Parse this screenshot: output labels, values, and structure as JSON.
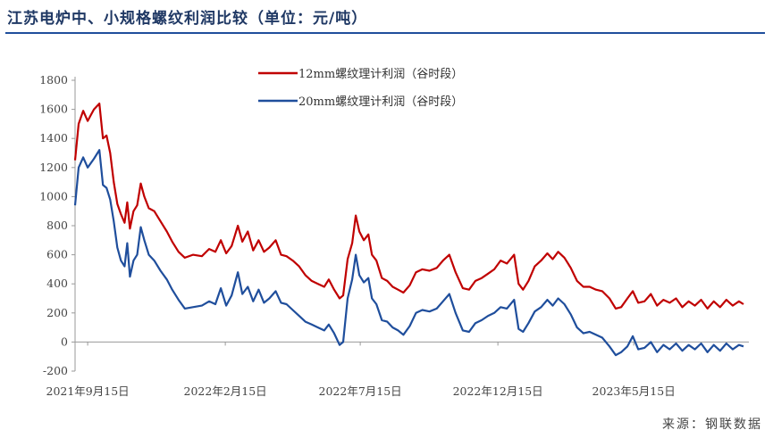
{
  "title": "江苏电炉中、小规格螺纹利润比较（单位：元/吨）",
  "source": "来源：钢联数据",
  "chart_data": {
    "type": "line",
    "title": "江苏电炉中、小规格螺纹利润比较（单位：元/吨）",
    "xlabel": "",
    "ylabel": "",
    "ylim": [
      -200,
      1800
    ],
    "yticks": [
      -200,
      0,
      200,
      400,
      600,
      800,
      1000,
      1200,
      1400,
      1600,
      1800
    ],
    "xlim": [
      "2021-09-01",
      "2023-09-20"
    ],
    "xticks": [
      {
        "date": "2021-09-15",
        "label": "2021年9月15日"
      },
      {
        "date": "2022-02-15",
        "label": "2022年2月15日"
      },
      {
        "date": "2022-07-15",
        "label": "2022年7月15日"
      },
      {
        "date": "2022-12-15",
        "label": "2022年12月15日"
      },
      {
        "date": "2023-05-15",
        "label": "2023年5月15日"
      }
    ],
    "grid": false,
    "legend_position": "top-center",
    "series": [
      {
        "name": "12mm螺纹理计利润（谷时段）",
        "color": "#c00000",
        "points": [
          [
            "2021-09-01",
            1250
          ],
          [
            "2021-09-05",
            1500
          ],
          [
            "2021-09-10",
            1590
          ],
          [
            "2021-09-15",
            1520
          ],
          [
            "2021-09-22",
            1600
          ],
          [
            "2021-09-28",
            1640
          ],
          [
            "2021-10-02",
            1400
          ],
          [
            "2021-10-06",
            1420
          ],
          [
            "2021-10-10",
            1300
          ],
          [
            "2021-10-14",
            1100
          ],
          [
            "2021-10-18",
            950
          ],
          [
            "2021-10-22",
            880
          ],
          [
            "2021-10-26",
            820
          ],
          [
            "2021-10-29",
            960
          ],
          [
            "2021-11-01",
            780
          ],
          [
            "2021-11-05",
            900
          ],
          [
            "2021-11-09",
            940
          ],
          [
            "2021-11-13",
            1090
          ],
          [
            "2021-11-17",
            1000
          ],
          [
            "2021-11-22",
            920
          ],
          [
            "2021-11-28",
            900
          ],
          [
            "2021-12-05",
            830
          ],
          [
            "2021-12-12",
            760
          ],
          [
            "2021-12-18",
            690
          ],
          [
            "2021-12-25",
            620
          ],
          [
            "2022-01-01",
            580
          ],
          [
            "2022-01-10",
            600
          ],
          [
            "2022-01-20",
            590
          ],
          [
            "2022-01-28",
            640
          ],
          [
            "2022-02-04",
            620
          ],
          [
            "2022-02-10",
            700
          ],
          [
            "2022-02-16",
            610
          ],
          [
            "2022-02-22",
            660
          ],
          [
            "2022-03-01",
            800
          ],
          [
            "2022-03-06",
            690
          ],
          [
            "2022-03-12",
            760
          ],
          [
            "2022-03-18",
            630
          ],
          [
            "2022-03-24",
            700
          ],
          [
            "2022-03-30",
            620
          ],
          [
            "2022-04-05",
            650
          ],
          [
            "2022-04-12",
            700
          ],
          [
            "2022-04-18",
            600
          ],
          [
            "2022-04-24",
            590
          ],
          [
            "2022-05-01",
            560
          ],
          [
            "2022-05-08",
            520
          ],
          [
            "2022-05-15",
            460
          ],
          [
            "2022-05-22",
            420
          ],
          [
            "2022-05-29",
            400
          ],
          [
            "2022-06-05",
            380
          ],
          [
            "2022-06-10",
            430
          ],
          [
            "2022-06-16",
            360
          ],
          [
            "2022-06-22",
            300
          ],
          [
            "2022-06-26",
            320
          ],
          [
            "2022-07-01",
            570
          ],
          [
            "2022-07-06",
            680
          ],
          [
            "2022-07-10",
            870
          ],
          [
            "2022-07-14",
            760
          ],
          [
            "2022-07-19",
            700
          ],
          [
            "2022-07-24",
            740
          ],
          [
            "2022-07-28",
            600
          ],
          [
            "2022-08-02",
            560
          ],
          [
            "2022-08-08",
            440
          ],
          [
            "2022-08-14",
            420
          ],
          [
            "2022-08-20",
            380
          ],
          [
            "2022-08-26",
            360
          ],
          [
            "2022-09-01",
            340
          ],
          [
            "2022-09-08",
            390
          ],
          [
            "2022-09-15",
            480
          ],
          [
            "2022-09-22",
            500
          ],
          [
            "2022-09-30",
            490
          ],
          [
            "2022-10-08",
            510
          ],
          [
            "2022-10-15",
            560
          ],
          [
            "2022-10-22",
            600
          ],
          [
            "2022-10-29",
            480
          ],
          [
            "2022-11-06",
            370
          ],
          [
            "2022-11-13",
            360
          ],
          [
            "2022-11-20",
            420
          ],
          [
            "2022-11-27",
            440
          ],
          [
            "2022-12-04",
            470
          ],
          [
            "2022-12-11",
            500
          ],
          [
            "2022-12-18",
            560
          ],
          [
            "2022-12-25",
            540
          ],
          [
            "2023-01-02",
            600
          ],
          [
            "2023-01-07",
            400
          ],
          [
            "2023-01-12",
            360
          ],
          [
            "2023-01-18",
            420
          ],
          [
            "2023-01-25",
            520
          ],
          [
            "2023-02-01",
            560
          ],
          [
            "2023-02-08",
            610
          ],
          [
            "2023-02-14",
            570
          ],
          [
            "2023-02-20",
            620
          ],
          [
            "2023-02-27",
            580
          ],
          [
            "2023-03-06",
            510
          ],
          [
            "2023-03-13",
            420
          ],
          [
            "2023-03-20",
            380
          ],
          [
            "2023-03-27",
            380
          ],
          [
            "2023-04-03",
            360
          ],
          [
            "2023-04-10",
            350
          ],
          [
            "2023-04-18",
            300
          ],
          [
            "2023-04-25",
            230
          ],
          [
            "2023-05-01",
            240
          ],
          [
            "2023-05-08",
            300
          ],
          [
            "2023-05-14",
            350
          ],
          [
            "2023-05-20",
            270
          ],
          [
            "2023-05-27",
            280
          ],
          [
            "2023-06-03",
            330
          ],
          [
            "2023-06-10",
            250
          ],
          [
            "2023-06-17",
            290
          ],
          [
            "2023-06-24",
            270
          ],
          [
            "2023-07-01",
            300
          ],
          [
            "2023-07-08",
            240
          ],
          [
            "2023-07-15",
            280
          ],
          [
            "2023-07-22",
            250
          ],
          [
            "2023-07-29",
            290
          ],
          [
            "2023-08-05",
            230
          ],
          [
            "2023-08-12",
            280
          ],
          [
            "2023-08-19",
            240
          ],
          [
            "2023-08-26",
            290
          ],
          [
            "2023-09-02",
            250
          ],
          [
            "2023-09-09",
            280
          ],
          [
            "2023-09-14",
            260
          ]
        ]
      },
      {
        "name": "20mm螺纹理计利润（谷时段）",
        "color": "#1f4e9c",
        "points": [
          [
            "2021-09-01",
            940
          ],
          [
            "2021-09-05",
            1200
          ],
          [
            "2021-09-10",
            1270
          ],
          [
            "2021-09-15",
            1200
          ],
          [
            "2021-09-22",
            1260
          ],
          [
            "2021-09-28",
            1320
          ],
          [
            "2021-10-02",
            1080
          ],
          [
            "2021-10-06",
            1060
          ],
          [
            "2021-10-10",
            980
          ],
          [
            "2021-10-14",
            830
          ],
          [
            "2021-10-18",
            650
          ],
          [
            "2021-10-22",
            560
          ],
          [
            "2021-10-26",
            520
          ],
          [
            "2021-10-29",
            680
          ],
          [
            "2021-11-01",
            450
          ],
          [
            "2021-11-05",
            560
          ],
          [
            "2021-11-09",
            600
          ],
          [
            "2021-11-13",
            790
          ],
          [
            "2021-11-17",
            700
          ],
          [
            "2021-11-22",
            600
          ],
          [
            "2021-11-28",
            560
          ],
          [
            "2021-12-05",
            490
          ],
          [
            "2021-12-12",
            430
          ],
          [
            "2021-12-18",
            360
          ],
          [
            "2021-12-25",
            290
          ],
          [
            "2022-01-01",
            230
          ],
          [
            "2022-01-10",
            240
          ],
          [
            "2022-01-20",
            250
          ],
          [
            "2022-01-28",
            280
          ],
          [
            "2022-02-04",
            260
          ],
          [
            "2022-02-10",
            370
          ],
          [
            "2022-02-16",
            250
          ],
          [
            "2022-02-22",
            320
          ],
          [
            "2022-03-01",
            480
          ],
          [
            "2022-03-06",
            330
          ],
          [
            "2022-03-12",
            380
          ],
          [
            "2022-03-18",
            280
          ],
          [
            "2022-03-24",
            360
          ],
          [
            "2022-03-30",
            270
          ],
          [
            "2022-04-05",
            300
          ],
          [
            "2022-04-12",
            350
          ],
          [
            "2022-04-18",
            270
          ],
          [
            "2022-04-24",
            260
          ],
          [
            "2022-05-01",
            220
          ],
          [
            "2022-05-08",
            180
          ],
          [
            "2022-05-15",
            140
          ],
          [
            "2022-05-22",
            120
          ],
          [
            "2022-05-29",
            100
          ],
          [
            "2022-06-05",
            80
          ],
          [
            "2022-06-10",
            120
          ],
          [
            "2022-06-16",
            60
          ],
          [
            "2022-06-22",
            -20
          ],
          [
            "2022-06-26",
            0
          ],
          [
            "2022-07-01",
            300
          ],
          [
            "2022-07-06",
            430
          ],
          [
            "2022-07-10",
            600
          ],
          [
            "2022-07-14",
            460
          ],
          [
            "2022-07-19",
            410
          ],
          [
            "2022-07-24",
            440
          ],
          [
            "2022-07-28",
            300
          ],
          [
            "2022-08-02",
            260
          ],
          [
            "2022-08-08",
            150
          ],
          [
            "2022-08-14",
            140
          ],
          [
            "2022-08-20",
            100
          ],
          [
            "2022-08-26",
            80
          ],
          [
            "2022-09-01",
            50
          ],
          [
            "2022-09-08",
            110
          ],
          [
            "2022-09-15",
            200
          ],
          [
            "2022-09-22",
            220
          ],
          [
            "2022-09-30",
            210
          ],
          [
            "2022-10-08",
            230
          ],
          [
            "2022-10-15",
            280
          ],
          [
            "2022-10-22",
            330
          ],
          [
            "2022-10-29",
            200
          ],
          [
            "2022-11-06",
            80
          ],
          [
            "2022-11-13",
            70
          ],
          [
            "2022-11-20",
            130
          ],
          [
            "2022-11-27",
            150
          ],
          [
            "2022-12-04",
            180
          ],
          [
            "2022-12-11",
            200
          ],
          [
            "2022-12-18",
            240
          ],
          [
            "2022-12-25",
            230
          ],
          [
            "2023-01-02",
            290
          ],
          [
            "2023-01-07",
            90
          ],
          [
            "2023-01-12",
            70
          ],
          [
            "2023-01-18",
            130
          ],
          [
            "2023-01-25",
            210
          ],
          [
            "2023-02-01",
            240
          ],
          [
            "2023-02-08",
            290
          ],
          [
            "2023-02-14",
            250
          ],
          [
            "2023-02-20",
            300
          ],
          [
            "2023-02-27",
            260
          ],
          [
            "2023-03-06",
            190
          ],
          [
            "2023-03-13",
            100
          ],
          [
            "2023-03-20",
            60
          ],
          [
            "2023-03-27",
            70
          ],
          [
            "2023-04-03",
            50
          ],
          [
            "2023-04-10",
            30
          ],
          [
            "2023-04-18",
            -30
          ],
          [
            "2023-04-25",
            -90
          ],
          [
            "2023-05-01",
            -70
          ],
          [
            "2023-05-08",
            -30
          ],
          [
            "2023-05-14",
            40
          ],
          [
            "2023-05-20",
            -50
          ],
          [
            "2023-05-27",
            -40
          ],
          [
            "2023-06-03",
            0
          ],
          [
            "2023-06-10",
            -70
          ],
          [
            "2023-06-17",
            -20
          ],
          [
            "2023-06-24",
            -50
          ],
          [
            "2023-07-01",
            -10
          ],
          [
            "2023-07-08",
            -60
          ],
          [
            "2023-07-15",
            -20
          ],
          [
            "2023-07-22",
            -50
          ],
          [
            "2023-07-29",
            -10
          ],
          [
            "2023-08-05",
            -70
          ],
          [
            "2023-08-12",
            -20
          ],
          [
            "2023-08-19",
            -60
          ],
          [
            "2023-08-26",
            -10
          ],
          [
            "2023-09-02",
            -50
          ],
          [
            "2023-09-09",
            -20
          ],
          [
            "2023-09-14",
            -30
          ]
        ]
      }
    ]
  }
}
